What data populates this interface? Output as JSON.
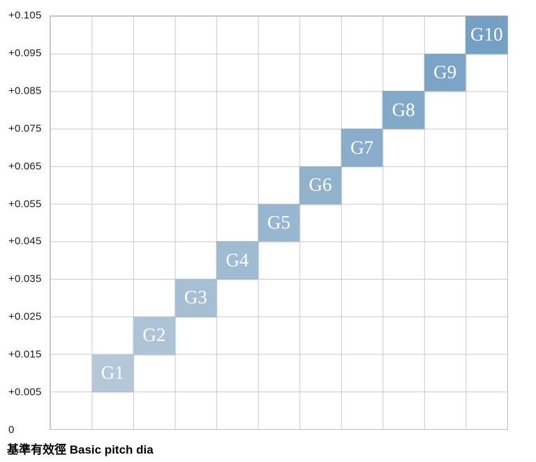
{
  "chart_data": {
    "type": "heatmap",
    "title": "",
    "xlabel": "基準有效徑 Basic pitch dia",
    "ylabel": "",
    "legend": "none",
    "grid": {
      "visible": true,
      "columns": 11,
      "rows": 11
    },
    "y_axis": {
      "tick_labels": [
        "+0.105",
        "+0.095",
        "+0.085",
        "+0.075",
        "+0.065",
        "+0.055",
        "+0.045",
        "+0.035",
        "+0.025",
        "+0.015",
        "+0.005",
        "0"
      ],
      "range_low": "0",
      "range_high": "+0.105"
    },
    "cells": [
      {
        "label": "G1",
        "col": 1,
        "row": 9,
        "range_low": "+0.005",
        "range_high": "+0.015",
        "color": "#b4c8da"
      },
      {
        "label": "G2",
        "col": 2,
        "row": 8,
        "range_low": "+0.015",
        "range_high": "+0.025",
        "color": "#adc4d7"
      },
      {
        "label": "G3",
        "col": 3,
        "row": 7,
        "range_low": "+0.025",
        "range_high": "+0.035",
        "color": "#a6bfd5"
      },
      {
        "label": "G4",
        "col": 4,
        "row": 6,
        "range_low": "+0.035",
        "range_high": "+0.045",
        "color": "#9ebbd2"
      },
      {
        "label": "G5",
        "col": 5,
        "row": 5,
        "range_low": "+0.045",
        "range_high": "+0.055",
        "color": "#97b6d0"
      },
      {
        "label": "G6",
        "col": 6,
        "row": 4,
        "range_low": "+0.055",
        "range_high": "+0.065",
        "color": "#90b2cd"
      },
      {
        "label": "G7",
        "col": 7,
        "row": 3,
        "range_low": "+0.065",
        "range_high": "+0.075",
        "color": "#89adcb"
      },
      {
        "label": "G8",
        "col": 8,
        "row": 2,
        "range_low": "+0.075",
        "range_high": "+0.085",
        "color": "#82a9c8"
      },
      {
        "label": "G9",
        "col": 9,
        "row": 1,
        "range_low": "+0.085",
        "range_high": "+0.095",
        "color": "#7ba4c6"
      },
      {
        "label": "G10",
        "col": 10,
        "row": 0,
        "range_low": "+0.095",
        "range_high": "+0.105",
        "color": "#74a0c4"
      }
    ]
  }
}
